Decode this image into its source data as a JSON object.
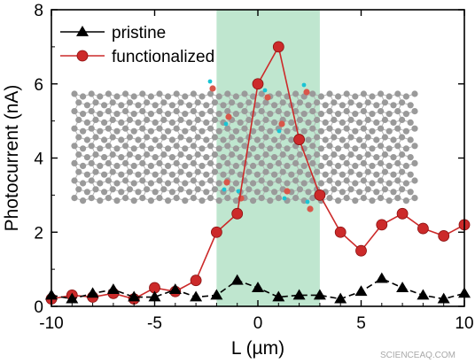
{
  "chart_data": {
    "type": "line",
    "xlabel": "L (µm)",
    "ylabel": "Photocurrent (nA)",
    "xlim": [
      -10,
      10
    ],
    "ylim": [
      0,
      8
    ],
    "x_ticks": [
      -10,
      -5,
      0,
      5,
      10
    ],
    "y_ticks": [
      0,
      2,
      4,
      6,
      8
    ],
    "grid": false,
    "legend_position": "top-left",
    "highlight_region": {
      "x_range": [
        -2,
        3
      ],
      "color": "#bfe6cf"
    },
    "series": [
      {
        "name": "pristine",
        "marker": "triangle",
        "color": "#000000",
        "x": [
          -10,
          -9,
          -8,
          -7,
          -6,
          -5,
          -4,
          -3,
          -2,
          -1,
          0,
          1,
          2,
          3,
          4,
          5,
          6,
          7,
          8,
          9,
          10
        ],
        "y": [
          0.3,
          0.2,
          0.35,
          0.45,
          0.25,
          0.25,
          0.45,
          0.25,
          0.3,
          0.7,
          0.5,
          0.25,
          0.3,
          0.3,
          0.2,
          0.4,
          0.75,
          0.5,
          0.3,
          0.2,
          0.35
        ]
      },
      {
        "name": "functionalized",
        "marker": "circle",
        "color": "#cc2a2a",
        "x": [
          -10,
          -9,
          -8,
          -7,
          -6,
          -5,
          -4,
          -3,
          -2,
          -1,
          0,
          1,
          2,
          3,
          4,
          5,
          6,
          7,
          8,
          9,
          10
        ],
        "y": [
          0.2,
          0.3,
          0.25,
          0.35,
          0.2,
          0.5,
          0.4,
          0.7,
          2.0,
          2.5,
          6.0,
          7.0,
          4.5,
          3.0,
          2.0,
          1.5,
          2.2,
          2.5,
          2.1,
          1.9,
          2.2
        ]
      }
    ]
  },
  "inset": {
    "atom_color": "#9a9a9a",
    "bond_color": "#b5b5b5",
    "oxygen_color": "#d9574a",
    "hydrogen_color": "#19c4d4"
  },
  "watermark": "SCIENCEAQ.COM"
}
